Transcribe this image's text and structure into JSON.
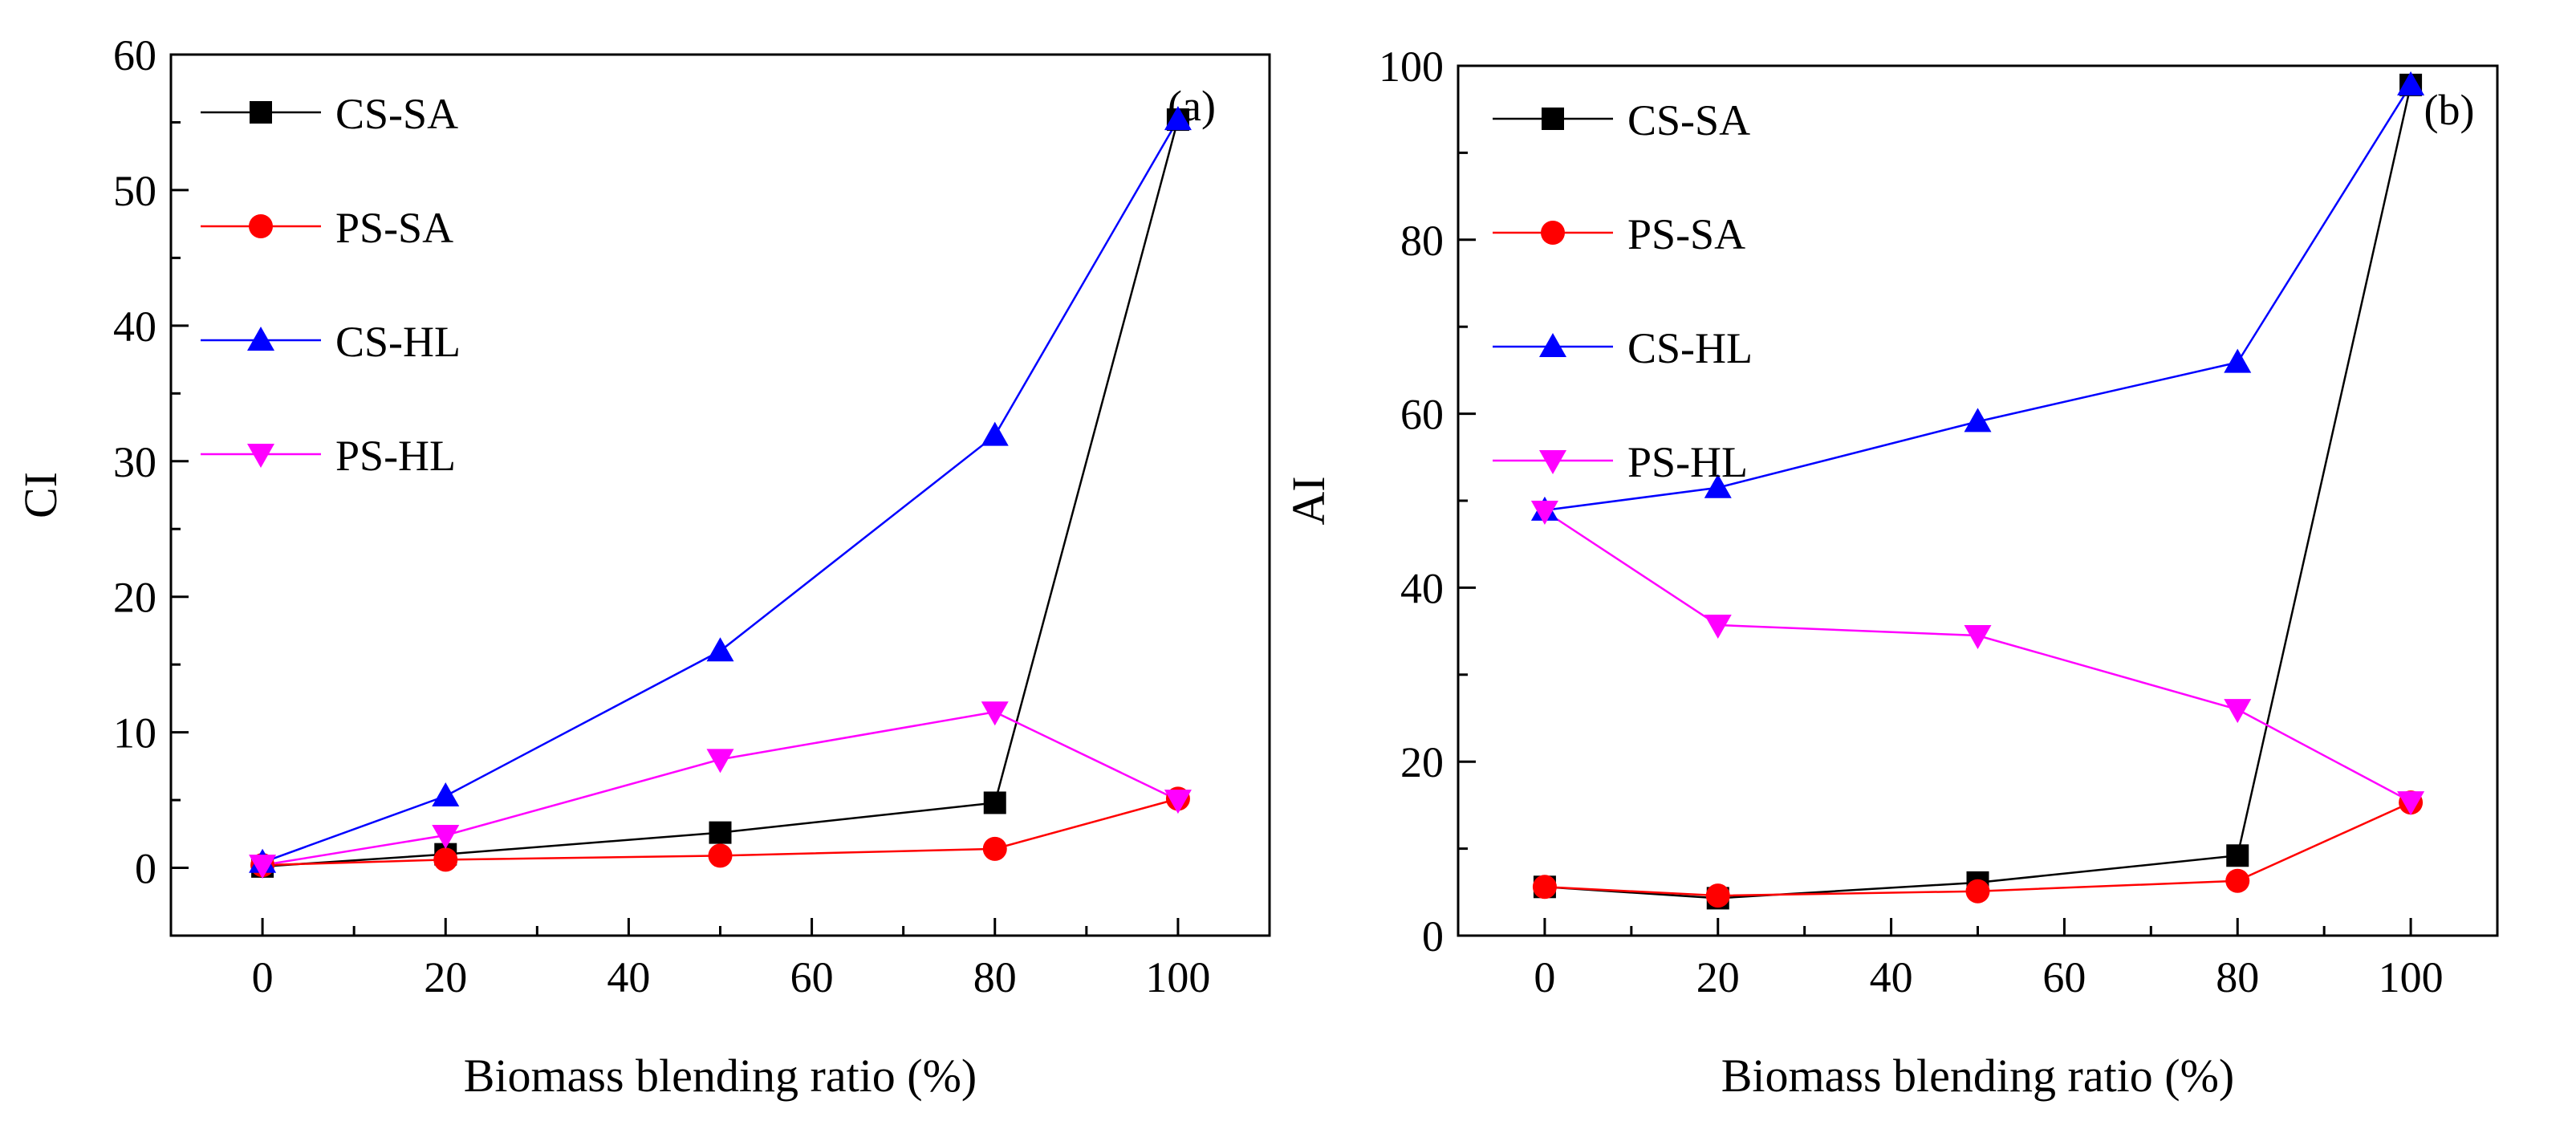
{
  "chart_data": [
    {
      "type": "line",
      "panel_tag": "(a)",
      "xlabel": "Biomass blending ratio (%)",
      "ylabel": "CI",
      "xlim": [
        -10,
        110
      ],
      "ylim": [
        -5,
        60
      ],
      "xticks": [
        0,
        20,
        40,
        60,
        80,
        100
      ],
      "yticks": [
        0,
        10,
        20,
        30,
        40,
        50,
        60
      ],
      "x": [
        0,
        20,
        50,
        80,
        100
      ],
      "legend_position": "top-left",
      "series": [
        {
          "name": "CS-SA",
          "color": "#000000",
          "marker": "square",
          "values": [
            0.1,
            1.0,
            2.6,
            4.8,
            55.2
          ]
        },
        {
          "name": "PS-SA",
          "color": "#ff0000",
          "marker": "circle",
          "values": [
            0.2,
            0.6,
            0.9,
            1.4,
            5.1
          ]
        },
        {
          "name": "CS-HL",
          "color": "#0000ff",
          "marker": "triangle-up",
          "values": [
            0.4,
            5.3,
            16.0,
            31.9,
            55.2
          ]
        },
        {
          "name": "PS-HL",
          "color": "#ff00ff",
          "marker": "triangle-down",
          "values": [
            0.2,
            2.4,
            8.0,
            11.5,
            5.0
          ]
        }
      ]
    },
    {
      "type": "line",
      "panel_tag": "(b)",
      "xlabel": "Biomass blending ratio (%)",
      "ylabel": "AI",
      "xlim": [
        -10,
        110
      ],
      "ylim": [
        0,
        100
      ],
      "xticks": [
        0,
        20,
        40,
        60,
        80,
        100
      ],
      "yticks": [
        0,
        20,
        40,
        60,
        80,
        100
      ],
      "x": [
        0,
        20,
        50,
        80,
        100
      ],
      "legend_position": "top-left",
      "series": [
        {
          "name": "CS-SA",
          "color": "#000000",
          "marker": "square",
          "values": [
            5.6,
            4.3,
            6.1,
            9.2,
            97.8
          ]
        },
        {
          "name": "PS-SA",
          "color": "#ff0000",
          "marker": "circle",
          "values": [
            5.6,
            4.6,
            5.1,
            6.3,
            15.3
          ]
        },
        {
          "name": "CS-HL",
          "color": "#0000ff",
          "marker": "triangle-up",
          "values": [
            48.9,
            51.5,
            59.1,
            65.9,
            97.8
          ]
        },
        {
          "name": "PS-HL",
          "color": "#ff00ff",
          "marker": "triangle-down",
          "values": [
            48.8,
            35.7,
            34.5,
            26.0,
            15.4
          ]
        }
      ]
    }
  ]
}
